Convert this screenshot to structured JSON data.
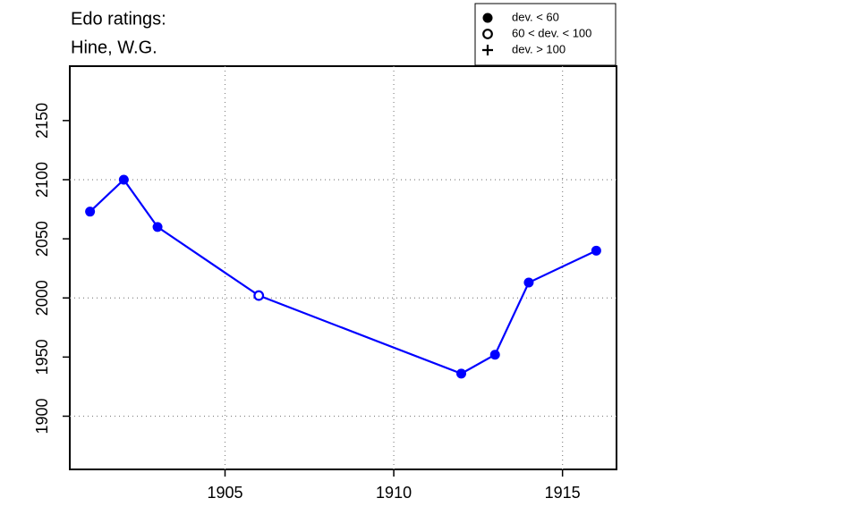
{
  "chart_data": {
    "type": "line",
    "title": [
      "Edo ratings:",
      "Hine, W.G."
    ],
    "x": [
      1901,
      1902,
      1903,
      1906,
      1912,
      1913,
      1914,
      1916
    ],
    "series": [
      {
        "color": "#0000ff",
        "values": [
          2073,
          2100,
          2060,
          2002,
          1936,
          1952,
          2013,
          2040
        ],
        "symbols": [
          "filled",
          "filled",
          "filled",
          "open",
          "filled",
          "filled",
          "filled",
          "filled"
        ]
      }
    ],
    "xlim": [
      1900.4,
      1916.6
    ],
    "ylim": [
      1855,
      2196
    ],
    "xticks": [
      1905,
      1910,
      1915
    ],
    "yticks": [
      1900,
      1950,
      2000,
      2050,
      2100,
      2150
    ],
    "xgrid": [
      1905,
      1910,
      1915
    ],
    "ygrid": [
      1900,
      2000,
      2100
    ],
    "legend": [
      {
        "label": "dev. < 60",
        "symbol": "filled"
      },
      {
        "label": "60 < dev. < 100",
        "symbol": "open"
      },
      {
        "label": "dev. > 100",
        "symbol": "plus"
      }
    ],
    "legend_position": "top-right"
  }
}
